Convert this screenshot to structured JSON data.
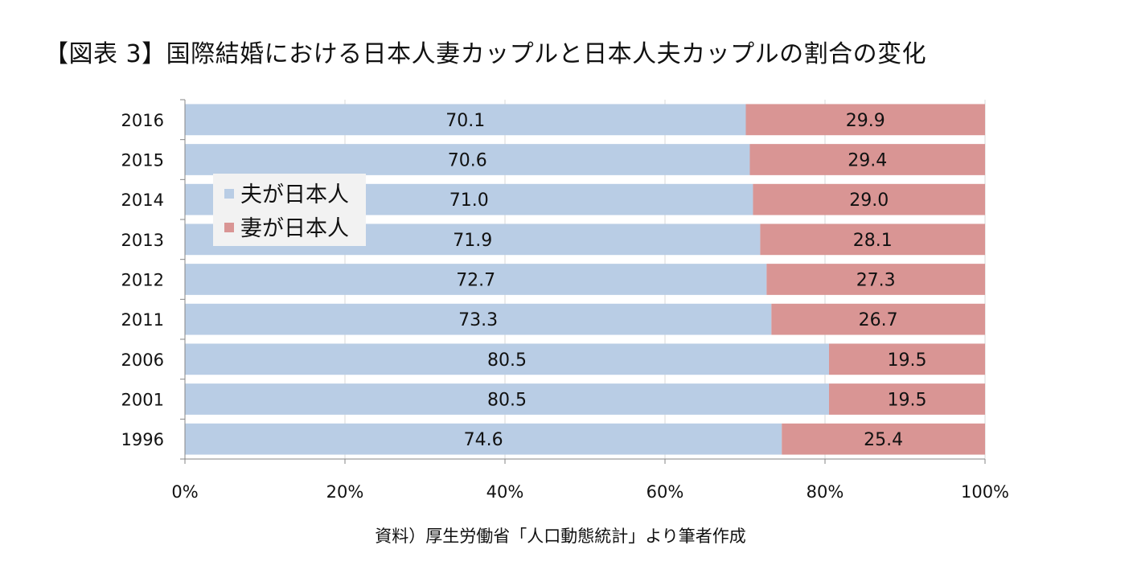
{
  "title": "【図表 3】国際結婚における日本人妻カップルと日本人夫カップルの割合の変化",
  "source": "資料）厚生労働省「人口動態統計」より筆者作成",
  "chart_data": {
    "type": "bar",
    "orientation": "horizontal",
    "stacked": "percent",
    "categories": [
      "2016",
      "2015",
      "2014",
      "2013",
      "2012",
      "2011",
      "2006",
      "2001",
      "1996"
    ],
    "series": [
      {
        "name": "夫が日本人",
        "color": "#b9cde5",
        "values": [
          70.1,
          70.6,
          71.0,
          71.9,
          72.7,
          73.3,
          80.5,
          80.5,
          74.6
        ],
        "labels": [
          "70.1",
          "70.6",
          "71.0",
          "71.9",
          "72.7",
          "73.3",
          "80.5",
          "80.5",
          "74.6"
        ]
      },
      {
        "name": "妻が日本人",
        "color": "#d99594",
        "values": [
          29.9,
          29.4,
          29.0,
          28.1,
          27.3,
          26.7,
          19.5,
          19.5,
          25.4
        ],
        "labels": [
          "29.9",
          "29.4",
          "29.0",
          "28.1",
          "27.3",
          "26.7",
          "19.5",
          "19.5",
          "25.4"
        ]
      }
    ],
    "xticks": [
      "0%",
      "20%",
      "40%",
      "60%",
      "80%",
      "100%"
    ],
    "xlim": [
      0,
      100
    ],
    "grid": true,
    "legend": "upper-left"
  }
}
